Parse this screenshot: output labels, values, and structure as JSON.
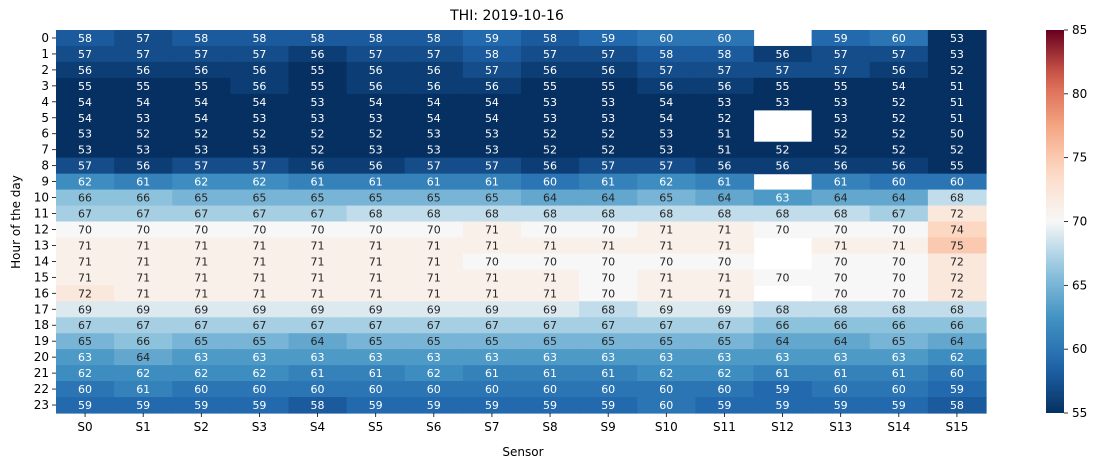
{
  "chart_data": {
    "type": "heatmap",
    "title": "THI: 2019-10-16",
    "xlabel": "Sensor",
    "ylabel": "Hour of the day",
    "x_categories": [
      "S0",
      "S1",
      "S2",
      "S3",
      "S4",
      "S5",
      "S6",
      "S7",
      "S8",
      "S9",
      "S10",
      "S11",
      "S12",
      "S13",
      "S14",
      "S15"
    ],
    "y_categories": [
      "0",
      "1",
      "2",
      "3",
      "4",
      "5",
      "6",
      "7",
      "8",
      "9",
      "10",
      "11",
      "12",
      "13",
      "14",
      "15",
      "16",
      "17",
      "18",
      "19",
      "20",
      "21",
      "22",
      "23"
    ],
    "values": [
      [
        58,
        57,
        58,
        58,
        58,
        58,
        58,
        59,
        58,
        59,
        60,
        60,
        null,
        59,
        60,
        53
      ],
      [
        57,
        57,
        57,
        57,
        56,
        57,
        57,
        58,
        57,
        57,
        58,
        58,
        56,
        57,
        57,
        53
      ],
      [
        56,
        56,
        56,
        56,
        55,
        56,
        56,
        57,
        56,
        56,
        57,
        57,
        57,
        57,
        56,
        52
      ],
      [
        55,
        55,
        55,
        56,
        55,
        56,
        56,
        56,
        55,
        55,
        56,
        56,
        55,
        55,
        54,
        51
      ],
      [
        54,
        54,
        54,
        54,
        53,
        54,
        54,
        54,
        53,
        53,
        54,
        53,
        53,
        53,
        52,
        51
      ],
      [
        54,
        53,
        54,
        53,
        53,
        53,
        54,
        54,
        53,
        53,
        54,
        52,
        null,
        53,
        52,
        51
      ],
      [
        53,
        52,
        52,
        52,
        52,
        52,
        53,
        53,
        52,
        52,
        53,
        51,
        null,
        52,
        52,
        50
      ],
      [
        53,
        53,
        53,
        53,
        52,
        53,
        53,
        53,
        52,
        52,
        53,
        51,
        52,
        52,
        52,
        52
      ],
      [
        57,
        56,
        57,
        57,
        56,
        56,
        57,
        57,
        56,
        57,
        57,
        56,
        56,
        56,
        56,
        55
      ],
      [
        62,
        61,
        62,
        62,
        61,
        61,
        61,
        61,
        60,
        61,
        62,
        61,
        null,
        61,
        60,
        60
      ],
      [
        66,
        66,
        65,
        65,
        65,
        65,
        65,
        65,
        64,
        64,
        65,
        64,
        63,
        64,
        64,
        68
      ],
      [
        67,
        67,
        67,
        67,
        67,
        68,
        68,
        68,
        68,
        68,
        68,
        68,
        68,
        68,
        67,
        72
      ],
      [
        70,
        70,
        70,
        70,
        70,
        70,
        70,
        71,
        70,
        70,
        71,
        71,
        70,
        70,
        70,
        74
      ],
      [
        71,
        71,
        71,
        71,
        71,
        71,
        71,
        71,
        71,
        71,
        71,
        71,
        null,
        71,
        71,
        75
      ],
      [
        71,
        71,
        71,
        71,
        71,
        71,
        71,
        70,
        70,
        70,
        70,
        70,
        null,
        70,
        70,
        72
      ],
      [
        71,
        71,
        71,
        71,
        71,
        71,
        71,
        71,
        71,
        70,
        71,
        71,
        70,
        70,
        70,
        72
      ],
      [
        72,
        71,
        71,
        71,
        71,
        71,
        71,
        71,
        71,
        70,
        71,
        71,
        null,
        70,
        70,
        72
      ],
      [
        69,
        69,
        69,
        69,
        69,
        69,
        69,
        69,
        69,
        68,
        69,
        69,
        68,
        68,
        68,
        68
      ],
      [
        67,
        67,
        67,
        67,
        67,
        67,
        67,
        67,
        67,
        67,
        67,
        67,
        66,
        66,
        66,
        66
      ],
      [
        65,
        66,
        65,
        65,
        64,
        65,
        65,
        65,
        65,
        65,
        65,
        65,
        64,
        64,
        65,
        64
      ],
      [
        63,
        64,
        63,
        63,
        63,
        63,
        63,
        63,
        63,
        63,
        63,
        63,
        63,
        63,
        63,
        62
      ],
      [
        62,
        62,
        62,
        62,
        61,
        61,
        62,
        61,
        61,
        61,
        62,
        62,
        61,
        61,
        61,
        60
      ],
      [
        60,
        61,
        60,
        60,
        60,
        60,
        60,
        60,
        60,
        60,
        60,
        60,
        59,
        60,
        60,
        59
      ],
      [
        59,
        59,
        59,
        59,
        58,
        59,
        59,
        59,
        59,
        59,
        60,
        59,
        59,
        59,
        59,
        58
      ]
    ],
    "colormap": "RdBu_r",
    "vmin": 55,
    "vmax": 85,
    "colorbar_ticks": [
      55,
      60,
      65,
      70,
      75,
      80,
      85
    ],
    "missing_cells": "blank (white)"
  }
}
